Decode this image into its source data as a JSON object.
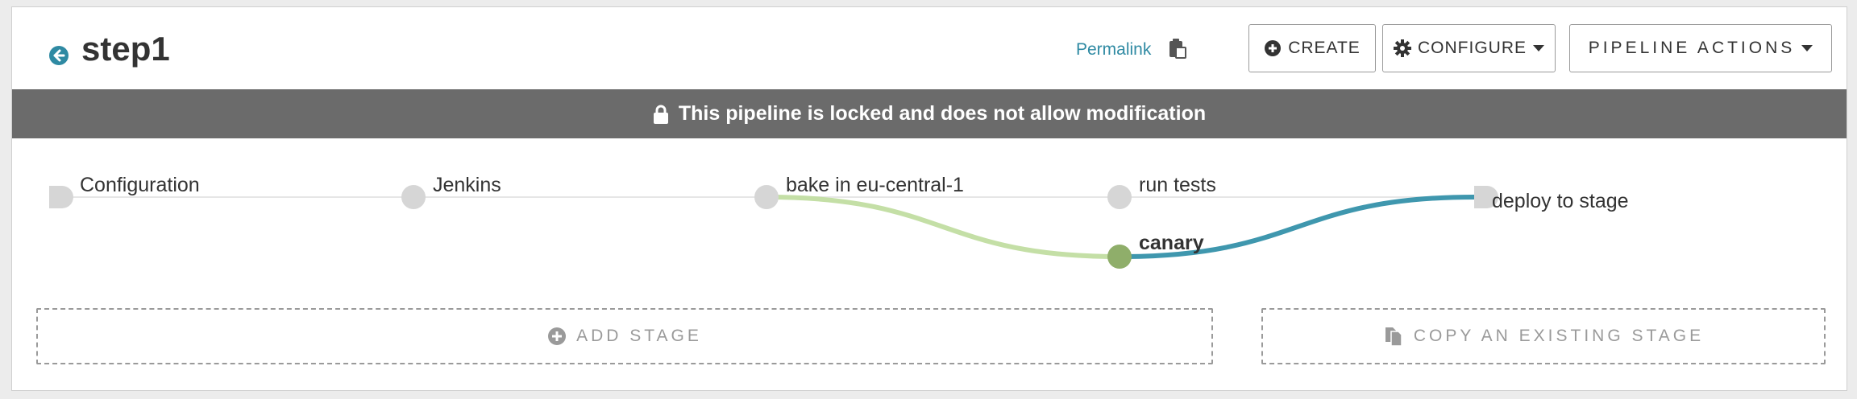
{
  "header": {
    "title": "step1",
    "permalink_label": "Permalink",
    "buttons": {
      "create": "CREATE",
      "configure": "CONFIGURE",
      "pipeline_actions": "PIPELINE ACTIONS"
    }
  },
  "banner": {
    "text": "This pipeline is locked and does not allow modification"
  },
  "stages": [
    {
      "name": "Configuration"
    },
    {
      "name": "Jenkins"
    },
    {
      "name": "bake in eu-central-1"
    },
    {
      "name": "run tests"
    },
    {
      "name": "canary"
    },
    {
      "name": "deploy to stage"
    }
  ],
  "actions": {
    "add_stage": "ADD STAGE",
    "copy_stage": "COPY AN EXISTING STAGE"
  },
  "colors": {
    "accent": "#2f8aa3",
    "banner": "#6b6b6b",
    "node_inactive": "#d6d6d6",
    "node_active": "#8fae6a",
    "edge_upstream": "#c4dfa6",
    "edge_downstream": "#3f97ae"
  },
  "icons": {
    "back": "arrow-circle-left-icon",
    "permalink": "clipboard-icon",
    "create": "plus-circle-icon",
    "configure": "gear-icon",
    "dropdown": "caret-down-icon",
    "lock": "lock-icon",
    "add": "plus-circle-icon",
    "copy": "copy-files-icon"
  }
}
